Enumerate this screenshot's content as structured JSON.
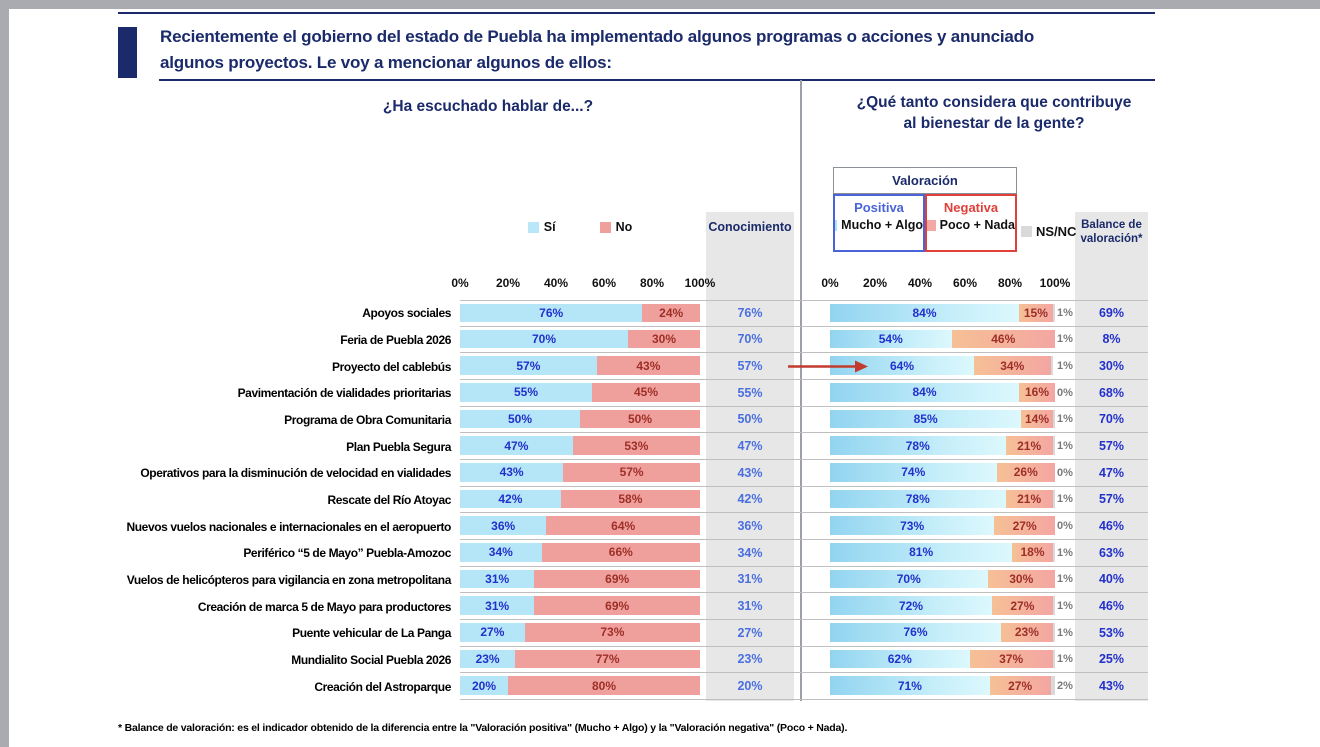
{
  "title": {
    "line1": "Recientemente el gobierno del estado de Puebla ha implementado algunos programas o acciones y anunciado",
    "line2": "algunos proyectos. Le voy a mencionar algunos de ellos:"
  },
  "panels": {
    "left": {
      "title": "¿Ha escuchado hablar de...?",
      "legend": [
        {
          "label": "Sí",
          "color": "#b5e6f7"
        },
        {
          "label": "No",
          "color": "#f0a09c"
        }
      ],
      "axis_ticks": [
        "0%",
        "20%",
        "40%",
        "60%",
        "80%",
        "100%"
      ],
      "column_header": "Conocimiento"
    },
    "right": {
      "title_line1": "¿Qué tanto considera que contribuye",
      "title_line2": "al bienestar de la gente?",
      "legend": {
        "group": "Valoración",
        "positive_label": "Positiva",
        "positive_series": "Mucho + Algo",
        "negative_label": "Negativa",
        "negative_series": "Poco + Nada",
        "nsnc": "NS/NC"
      },
      "axis_ticks": [
        "0%",
        "20%",
        "40%",
        "60%",
        "80%",
        "100%"
      ],
      "column_header": "Balance de valoración*"
    }
  },
  "chart_data": {
    "type": "bar",
    "orientation": "horizontal-stacked",
    "unit": "%",
    "xlim": [
      0,
      100
    ],
    "categories": [
      "Apoyos sociales",
      "Feria de Puebla 2026",
      "Proyecto del cablebús",
      "Pavimentación de vialidades prioritarias",
      "Programa de Obra Comunitaria",
      "Plan Puebla Segura",
      "Operativos para la disminución de velocidad en vialidades",
      "Rescate del Río Atoyac",
      "Nuevos vuelos nacionales e internacionales en el aeropuerto",
      "Periférico “5 de Mayo” Puebla-Amozoc",
      "Vuelos de helicópteros para vigilancia en zona metropolitana",
      "Creación de marca 5 de Mayo para productores",
      "Puente vehicular de La Panga",
      "Mundialito Social Puebla 2026",
      "Creación del Astroparque"
    ],
    "series": [
      {
        "name": "Sí",
        "values": [
          76,
          70,
          57,
          55,
          50,
          47,
          43,
          42,
          36,
          34,
          31,
          31,
          27,
          23,
          20
        ]
      },
      {
        "name": "No",
        "values": [
          24,
          30,
          43,
          45,
          50,
          53,
          57,
          58,
          64,
          66,
          69,
          69,
          73,
          77,
          80
        ]
      },
      {
        "name": "Conocimiento",
        "values": [
          76,
          70,
          57,
          55,
          50,
          47,
          43,
          42,
          36,
          34,
          31,
          31,
          27,
          23,
          20
        ]
      },
      {
        "name": "Valoración positiva (Mucho + Algo)",
        "values": [
          84,
          54,
          64,
          84,
          85,
          78,
          74,
          78,
          73,
          81,
          70,
          72,
          76,
          62,
          71
        ]
      },
      {
        "name": "Valoración negativa (Poco + Nada)",
        "values": [
          15,
          46,
          34,
          16,
          14,
          21,
          26,
          21,
          27,
          18,
          30,
          27,
          23,
          37,
          27
        ]
      },
      {
        "name": "NS/NC",
        "values": [
          1,
          1,
          1,
          0,
          1,
          1,
          0,
          1,
          0,
          1,
          1,
          1,
          1,
          1,
          2
        ]
      },
      {
        "name": "Balance de valoración",
        "values": [
          69,
          8,
          30,
          68,
          70,
          57,
          47,
          57,
          46,
          63,
          40,
          46,
          53,
          25,
          43
        ]
      }
    ],
    "annotations": [
      {
        "type": "arrow",
        "color": "#c23b2e",
        "target_category": "Proyecto del cablebús",
        "from": "Conocimiento 57%",
        "to": "Valoración positiva 64%"
      }
    ],
    "legend_position": "top",
    "grid": "row-separators-only"
  },
  "footnote": "* Balance de valoración: es el indicador obtenido de la diferencia entre la \"Valoración positiva\" (Mucho + Algo) y la \"Valoración negativa\" (Poco + Nada).",
  "colors": {
    "navy": "#1a2a6a",
    "si_bar": "#b5e6f7",
    "no_bar": "#f0a09c",
    "positive_gradient": [
      "#92d4f0",
      "#dcf8fd"
    ],
    "negative_gradient": [
      "#f6c096",
      "#f3a6a2"
    ],
    "nsnc_gray": "#d9d9d9",
    "value_blue": "#2230cc",
    "value_maroon": "#9e2f28",
    "conocimiento_blue": "#4a6fe0",
    "positive_label": "#4a63d8",
    "negative_label": "#e0403a",
    "arrow_red": "#c23b2e",
    "column_box_gray": "#e7e7e7",
    "frame_gray": "#a9abb0"
  }
}
